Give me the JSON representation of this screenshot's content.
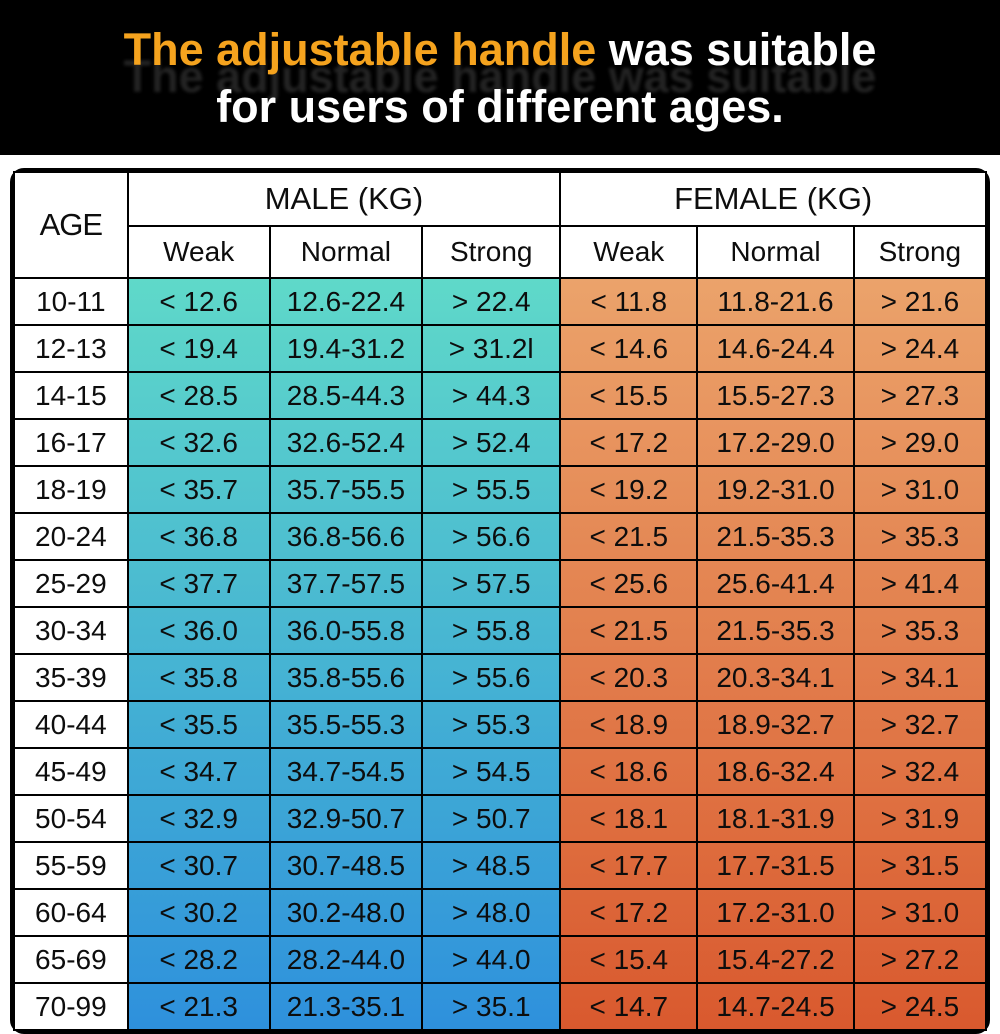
{
  "banner": {
    "line1_highlight": "The adjustable handle",
    "line1_rest": " was suitable",
    "line2": "for users of different ages.",
    "bg_color": "#000000",
    "highlight_color": "#f5a31e",
    "text_color": "#ffffff"
  },
  "chart_data": {
    "type": "table",
    "title": "The adjustable handle was suitable for users of different ages.",
    "age_header": "AGE",
    "group_headers": [
      {
        "label": "MALE (KG)"
      },
      {
        "label": "FEMALE (KG)"
      }
    ],
    "sub_headers": [
      "Weak",
      "Normal",
      "Strong"
    ],
    "rows": [
      {
        "age": "10-11",
        "male": [
          "< 12.6",
          "12.6-22.4",
          "> 22.4"
        ],
        "female": [
          "< 11.8",
          "11.8-21.6",
          "> 21.6"
        ]
      },
      {
        "age": "12-13",
        "male": [
          "< 19.4",
          "19.4-31.2",
          "> 31.2l"
        ],
        "female": [
          "< 14.6",
          "14.6-24.4",
          "> 24.4"
        ]
      },
      {
        "age": "14-15",
        "male": [
          "< 28.5",
          "28.5-44.3",
          "> 44.3"
        ],
        "female": [
          "< 15.5",
          "15.5-27.3",
          "> 27.3"
        ]
      },
      {
        "age": "16-17",
        "male": [
          "< 32.6",
          "32.6-52.4",
          "> 52.4"
        ],
        "female": [
          "< 17.2",
          "17.2-29.0",
          "> 29.0"
        ]
      },
      {
        "age": "18-19",
        "male": [
          "< 35.7",
          "35.7-55.5",
          "> 55.5"
        ],
        "female": [
          "< 19.2",
          "19.2-31.0",
          "> 31.0"
        ]
      },
      {
        "age": "20-24",
        "male": [
          "< 36.8",
          "36.8-56.6",
          "> 56.6"
        ],
        "female": [
          "< 21.5",
          "21.5-35.3",
          "> 35.3"
        ]
      },
      {
        "age": "25-29",
        "male": [
          "< 37.7",
          "37.7-57.5",
          "> 57.5"
        ],
        "female": [
          "< 25.6",
          "25.6-41.4",
          "> 41.4"
        ]
      },
      {
        "age": "30-34",
        "male": [
          "< 36.0",
          "36.0-55.8",
          "> 55.8"
        ],
        "female": [
          "< 21.5",
          "21.5-35.3",
          "> 35.3"
        ]
      },
      {
        "age": "35-39",
        "male": [
          "< 35.8",
          "35.8-55.6",
          "> 55.6"
        ],
        "female": [
          "< 20.3",
          "20.3-34.1",
          "> 34.1"
        ]
      },
      {
        "age": "40-44",
        "male": [
          "< 35.5",
          "35.5-55.3",
          "> 55.3"
        ],
        "female": [
          "< 18.9",
          "18.9-32.7",
          "> 32.7"
        ]
      },
      {
        "age": "45-49",
        "male": [
          "< 34.7",
          "34.7-54.5",
          "> 54.5"
        ],
        "female": [
          "< 18.6",
          "18.6-32.4",
          "> 32.4"
        ]
      },
      {
        "age": "50-54",
        "male": [
          "< 32.9",
          "32.9-50.7",
          "> 50.7"
        ],
        "female": [
          "< 18.1",
          "18.1-31.9",
          "> 31.9"
        ]
      },
      {
        "age": "55-59",
        "male": [
          "< 30.7",
          "30.7-48.5",
          "> 48.5"
        ],
        "female": [
          "< 17.7",
          "17.7-31.5",
          "> 31.5"
        ]
      },
      {
        "age": "60-64",
        "male": [
          "< 30.2",
          "30.2-48.0",
          "> 48.0"
        ],
        "female": [
          "< 17.2",
          "17.2-31.0",
          "> 31.0"
        ]
      },
      {
        "age": "65-69",
        "male": [
          "< 28.2",
          "28.2-44.0",
          "> 44.0"
        ],
        "female": [
          "< 15.4",
          "15.4-27.2",
          "> 27.2"
        ]
      },
      {
        "age": "70-99",
        "male": [
          "< 21.3",
          "21.3-35.1",
          "> 35.1"
        ],
        "female": [
          "< 14.7",
          "14.7-24.5",
          "> 24.5"
        ]
      }
    ],
    "colors": {
      "male_top": "#5FD9C9",
      "male_bottom": "#2E90DC",
      "female_top": "#EBA36B",
      "female_bottom": "#D9592E",
      "grid": "#000000",
      "header_bg": "#FFFFFF"
    },
    "layout": {
      "grid": "on",
      "legend": "none"
    }
  }
}
